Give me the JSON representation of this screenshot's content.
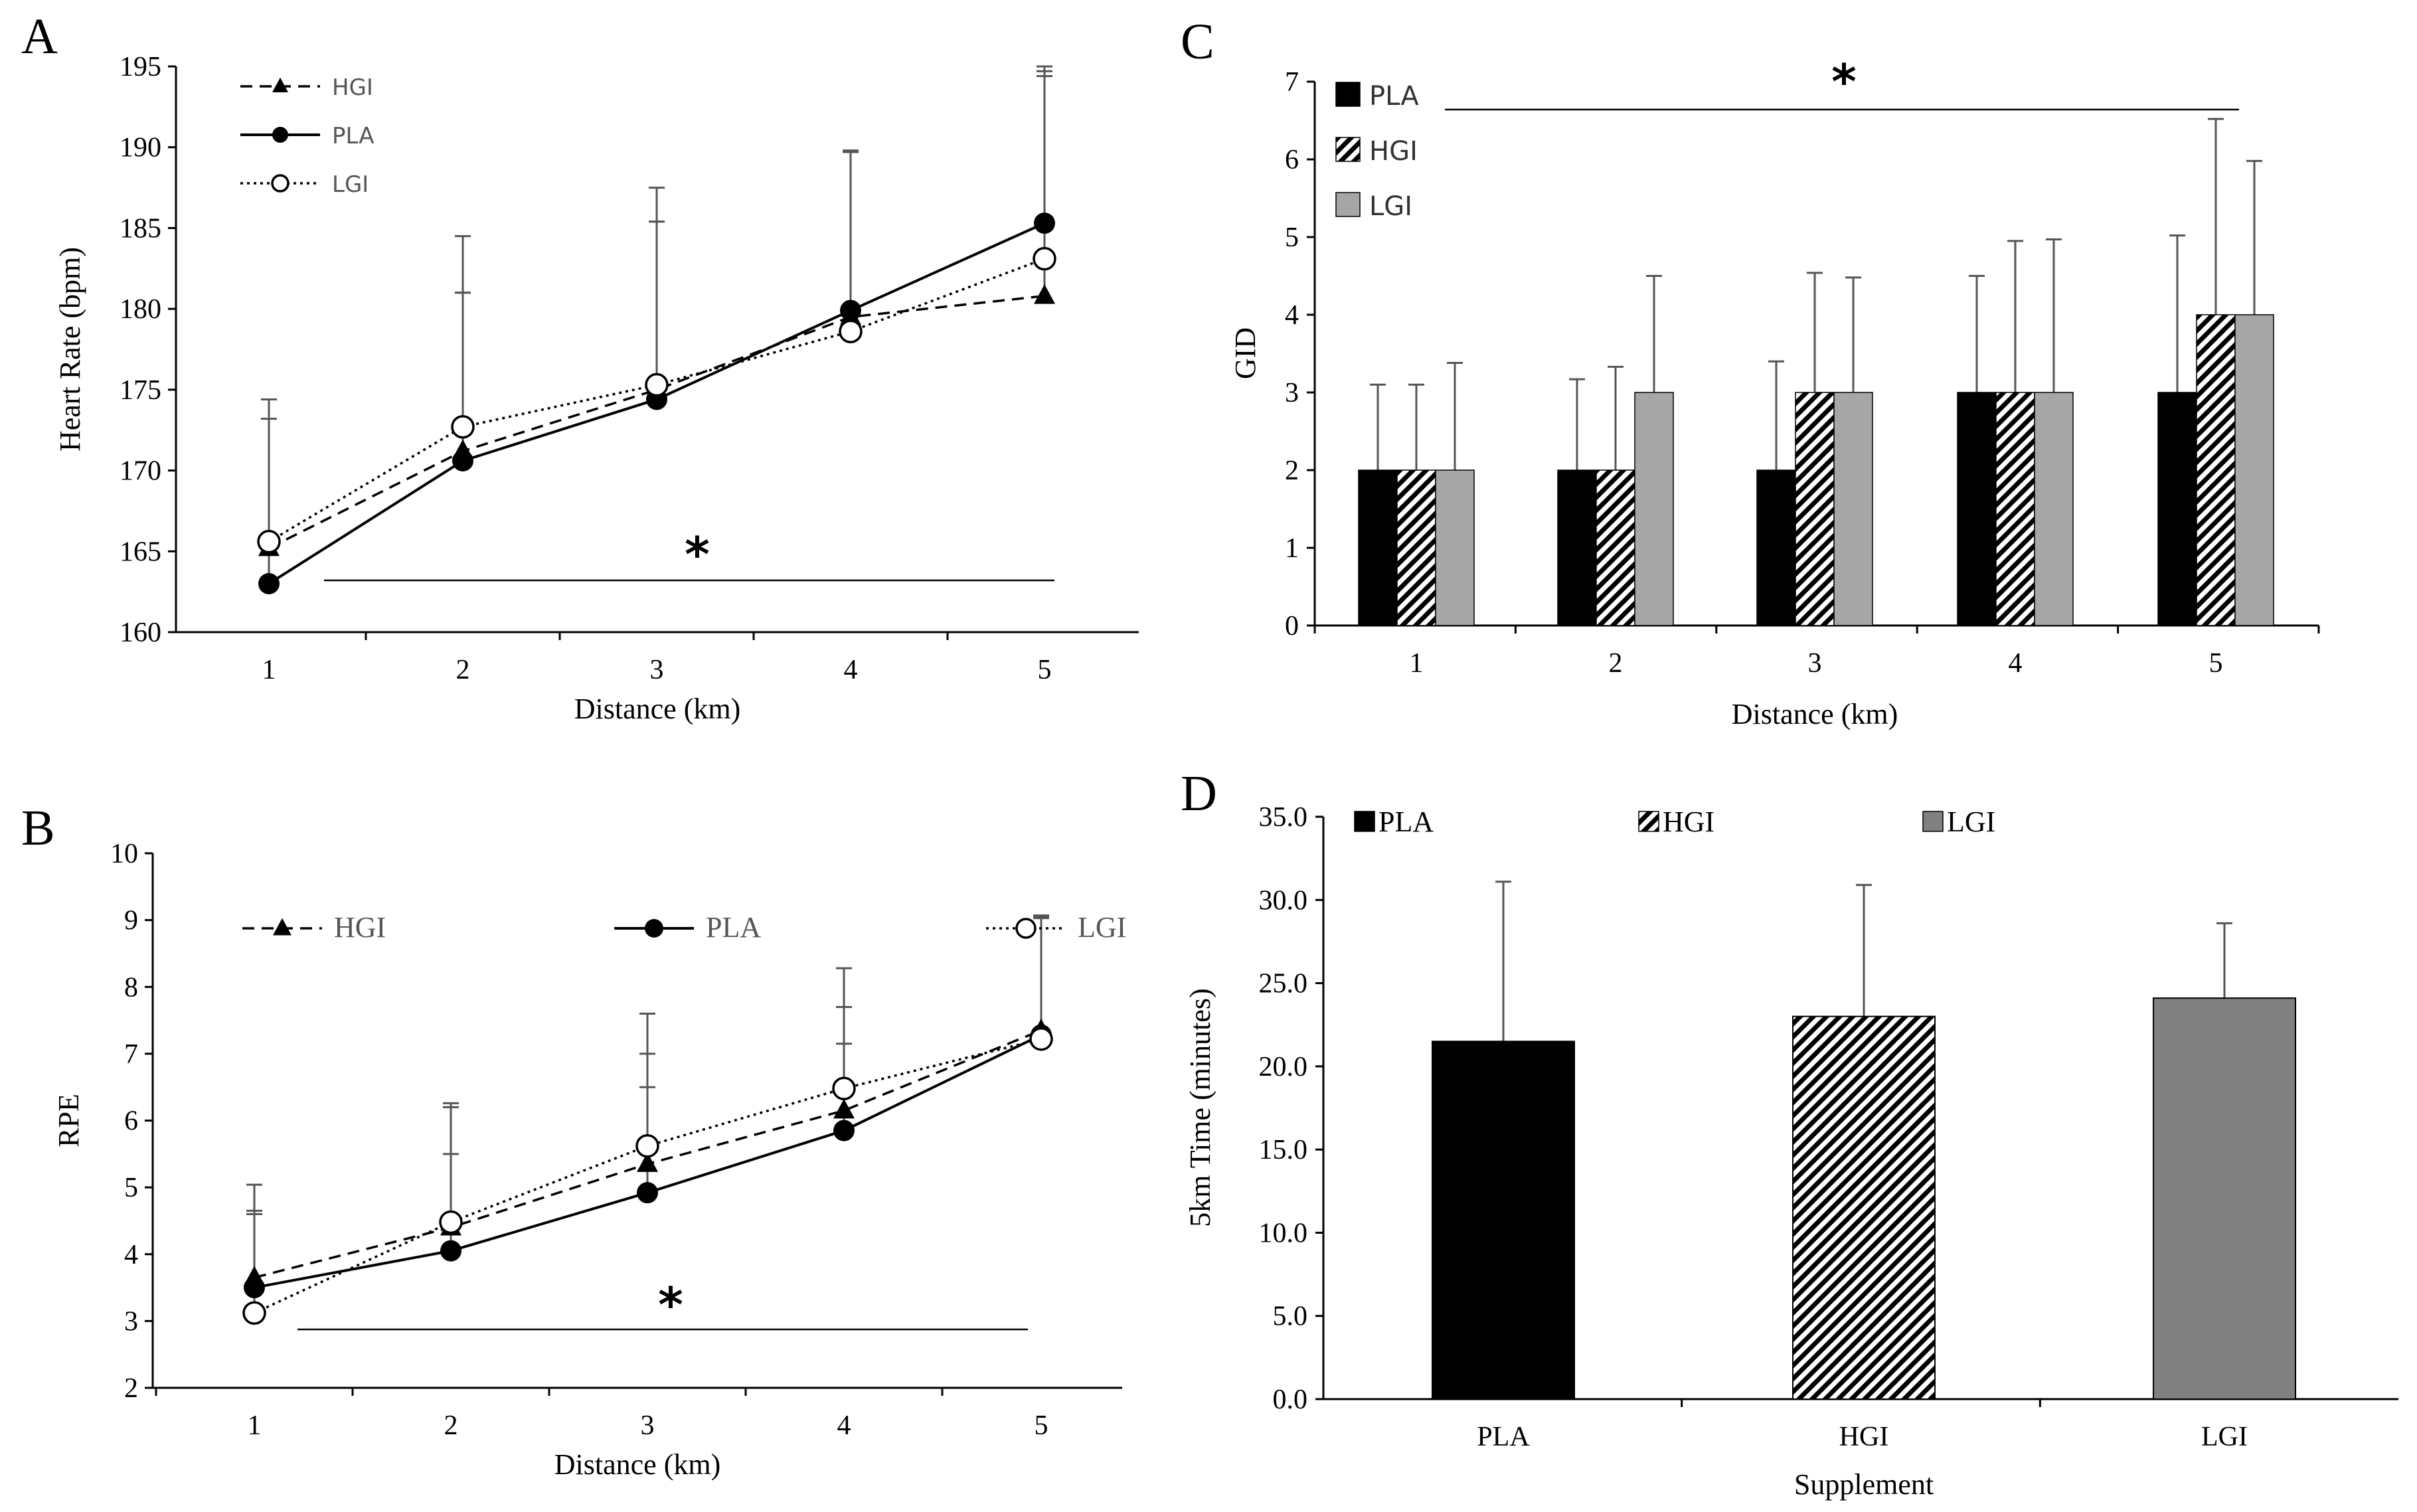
{
  "chart_data": [
    {
      "panel": "A",
      "type": "line",
      "x": [
        1,
        2,
        3,
        4,
        5
      ],
      "xlabel": "Distance (km)",
      "ylabel": "Heart Rate (bpm)",
      "ylim": [
        160,
        195
      ],
      "yticks": [
        160,
        165,
        170,
        175,
        180,
        185,
        190,
        195
      ],
      "significance": "*",
      "series": [
        {
          "name": "HGI",
          "marker": "triangle",
          "line": "dashed",
          "values": [
            165.2,
            171.2,
            175.0,
            179.5,
            180.8
          ],
          "errors": [
            8.0,
            9.8,
            10.4,
            10.2,
            13.6
          ]
        },
        {
          "name": "PLA",
          "marker": "filled-circle",
          "line": "solid",
          "values": [
            163.0,
            170.6,
            174.4,
            179.9,
            185.3
          ],
          "errors": [
            11.4,
            10.4,
            11.0,
            9.9,
            9.4
          ]
        },
        {
          "name": "LGI",
          "marker": "open-circle",
          "line": "dotted",
          "values": [
            165.6,
            172.7,
            175.3,
            178.6,
            183.1
          ],
          "errors": [
            8.8,
            11.8,
            12.2,
            11.1,
            11.9
          ]
        }
      ]
    },
    {
      "panel": "B",
      "type": "line",
      "x": [
        1,
        2,
        3,
        4,
        5
      ],
      "xlabel": "Distance (km)",
      "ylabel": "RPE",
      "ylim": [
        2,
        10
      ],
      "yticks": [
        2,
        3,
        4,
        5,
        6,
        7,
        8,
        9,
        10
      ],
      "significance": "*",
      "series": [
        {
          "name": "HGI",
          "marker": "triangle",
          "line": "dashed",
          "values": [
            3.65,
            4.4,
            5.35,
            6.15,
            7.35
          ],
          "errors": [
            1.0,
            1.8,
            1.65,
            1.55,
            1.7
          ]
        },
        {
          "name": "PLA",
          "marker": "filled-circle",
          "line": "solid",
          "values": [
            3.5,
            4.05,
            4.92,
            5.85,
            7.28
          ],
          "errors": [
            1.1,
            1.45,
            1.58,
            1.3,
            1.75
          ]
        },
        {
          "name": "LGI",
          "marker": "open-circle",
          "line": "dotted",
          "values": [
            3.12,
            4.48,
            5.62,
            6.48,
            7.22
          ],
          "errors": [
            1.92,
            1.78,
            1.98,
            1.8,
            1.85
          ]
        }
      ]
    },
    {
      "panel": "C",
      "type": "bar",
      "categories": [
        "1",
        "2",
        "3",
        "4",
        "5"
      ],
      "xlabel": "Distance (km)",
      "ylabel": "GID",
      "ylim": [
        0,
        7
      ],
      "yticks": [
        0,
        1,
        2,
        3,
        4,
        5,
        6,
        7
      ],
      "significance": "*",
      "series": [
        {
          "name": "PLA",
          "pattern": "solid-black",
          "values": [
            2,
            2,
            2,
            3,
            3
          ],
          "errors": [
            1.1,
            1.17,
            1.4,
            1.5,
            2.02
          ]
        },
        {
          "name": "HGI",
          "pattern": "hatched",
          "values": [
            2,
            2,
            3,
            3,
            4
          ],
          "errors": [
            1.1,
            1.33,
            1.54,
            1.95,
            2.52
          ]
        },
        {
          "name": "LGI",
          "pattern": "solid-gray",
          "values": [
            2,
            3,
            3,
            3,
            4
          ],
          "errors": [
            1.38,
            1.5,
            1.48,
            1.97,
            1.98
          ]
        }
      ]
    },
    {
      "panel": "D",
      "type": "bar",
      "categories": [
        "PLA",
        "HGI",
        "LGI"
      ],
      "xlabel": "Supplement",
      "ylabel": "5km Time (minutes)",
      "ylim": [
        0,
        35
      ],
      "yticks": [
        "0.0",
        "5.0",
        "10.0",
        "15.0",
        "20.0",
        "25.0",
        "30.0",
        "35.0"
      ],
      "values": [
        21.5,
        23.0,
        24.1
      ],
      "errors": [
        9.6,
        7.9,
        4.5
      ],
      "legend": [
        "PLA",
        "HGI",
        "LGI"
      ]
    }
  ],
  "colors": {
    "black": "#000000",
    "gray": "#a6a6a6",
    "gray_d": "#808080",
    "error_bar": "#555555"
  }
}
